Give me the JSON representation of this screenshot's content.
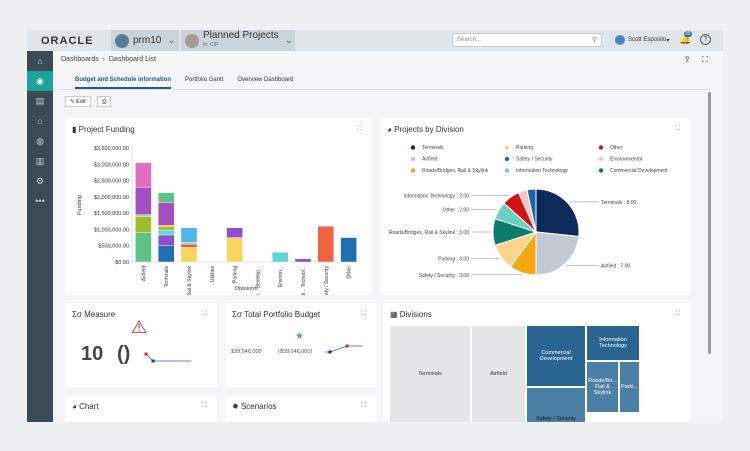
{
  "header": {
    "logo": "ORACLE",
    "workspace": "prm10",
    "project": "Planned Projects",
    "project_sub": "In: CIP",
    "search_placeholder": "Search...",
    "user": "Scott Esposito",
    "notifications": "99"
  },
  "breadcrumb": [
    "Dashboards",
    "Dashboard List"
  ],
  "tabs": [
    {
      "label": "Budget and Schedule information",
      "active": true
    },
    {
      "label": "Portfolio Gantt"
    },
    {
      "label": "Overview Dashboard"
    }
  ],
  "toolbar": {
    "edit": "Edit"
  },
  "funding": {
    "title": "Project Funding"
  },
  "chart_data": [
    {
      "type": "bar",
      "title": "Project Funding",
      "xlabel": "Divisions",
      "ylabel": "Funding",
      "ylim": [
        0,
        3500000
      ],
      "yticks": [
        "$0.00",
        "$500,000.00",
        "$1,000,000.00",
        "$1,500,000.00",
        "$2,000,000.00",
        "$2,500,000.00",
        "$3,000,000.00",
        "$3,500,000.00"
      ],
      "categories": [
        "Airfield",
        "Terminals",
        "Roads/B... Rail & Skylink",
        "Utilities",
        "Parking",
        "Commer... Develop...",
        "Environ...",
        "Informati... Technol...",
        "Safety / Security",
        "Other"
      ],
      "stacks": [
        [
          [
            900000,
            "#5cc287"
          ],
          [
            500000,
            "#9cbf2b"
          ],
          [
            50000,
            "#a5d9a0"
          ],
          [
            850000,
            "#a24fc0"
          ],
          [
            750000,
            "#e06fbf"
          ]
        ],
        [
          [
            500000,
            "#1f6fb2"
          ],
          [
            330000,
            "#8e4fd1"
          ],
          [
            150000,
            "#5fd6d8"
          ],
          [
            100000,
            "#9cbf2b"
          ],
          [
            50000,
            "#f0a03a"
          ],
          [
            700000,
            "#a24fc0"
          ],
          [
            300000,
            "#5cc287"
          ]
        ],
        [
          [
            450000,
            "#f8d55c"
          ],
          [
            100000,
            "#ea5a3e"
          ],
          [
            50000,
            "#b8c2cc"
          ],
          [
            450000,
            "#4fb5ea"
          ]
        ],
        [],
        [
          [
            750000,
            "#f8d55c"
          ],
          [
            300000,
            "#8e4fd1"
          ]
        ],
        [],
        [
          [
            300000,
            "#5fd6d8"
          ]
        ],
        [
          [
            100000,
            "#8e4fd1"
          ]
        ],
        [
          [
            1100000,
            "#ef6245"
          ]
        ],
        [
          [
            750000,
            "#1f6fb2"
          ]
        ]
      ]
    },
    {
      "type": "pie",
      "title": "Projects by Division",
      "legend": [
        {
          "name": "Terminals",
          "color": "#0e2b5c"
        },
        {
          "name": "Parking",
          "color": "#fcd58a"
        },
        {
          "name": "Other",
          "color": "#d90f16"
        },
        {
          "name": "Airfield",
          "color": "#c3cad4"
        },
        {
          "name": "Safety / Security",
          "color": "#0a7c6c"
        },
        {
          "name": "Environmental",
          "color": "#f4c4c8"
        },
        {
          "name": "Roads/Bridges, Rail & Skylink",
          "color": "#f7a70c"
        },
        {
          "name": "Information Technology",
          "color": "#6bcfc2"
        },
        {
          "name": "Commercial Development",
          "color": "#1568b0"
        }
      ],
      "slices": [
        {
          "label": "Terminals : 8.00",
          "value": 8,
          "color": "#0e2b5c"
        },
        {
          "label": "Airfield : 7.00",
          "value": 7,
          "color": "#c3cad4"
        },
        {
          "label": "Safety / Security : 3.00",
          "value": 3,
          "color": "#f7a70c"
        },
        {
          "label": "Parking : 3.00",
          "value": 3,
          "color": "#fcd58a"
        },
        {
          "label": "Roads/Bridges, Rail & Skylink : 3.00",
          "value": 3,
          "color": "#0a7c6c"
        },
        {
          "label": "Other : 2.00",
          "value": 2,
          "color": "#6bcfc2"
        },
        {
          "label": "Information Technology : 2.00",
          "value": 2,
          "color": "#d90f16"
        },
        {
          "label": "",
          "value": 1,
          "color": "#f4c4c8"
        },
        {
          "label": "",
          "value": 1,
          "color": "#1568b0"
        }
      ]
    }
  ],
  "measure": {
    "title": "Measure",
    "value": "10",
    "paren": "()"
  },
  "budget": {
    "title": "Total Portfolio Budget",
    "value1": "$39,046,000",
    "value2": "($39,046,000)"
  },
  "divisions": {
    "title": "Divisions",
    "cells": [
      "Terminals",
      "Airfield",
      "Commercial Development",
      "Information Technology",
      "Roads/Bri... Rail & Skylink",
      "Parki...",
      "Safety / Security"
    ]
  },
  "chart_card": {
    "title": "Chart"
  },
  "scenarios": {
    "title": "Scenarios"
  }
}
